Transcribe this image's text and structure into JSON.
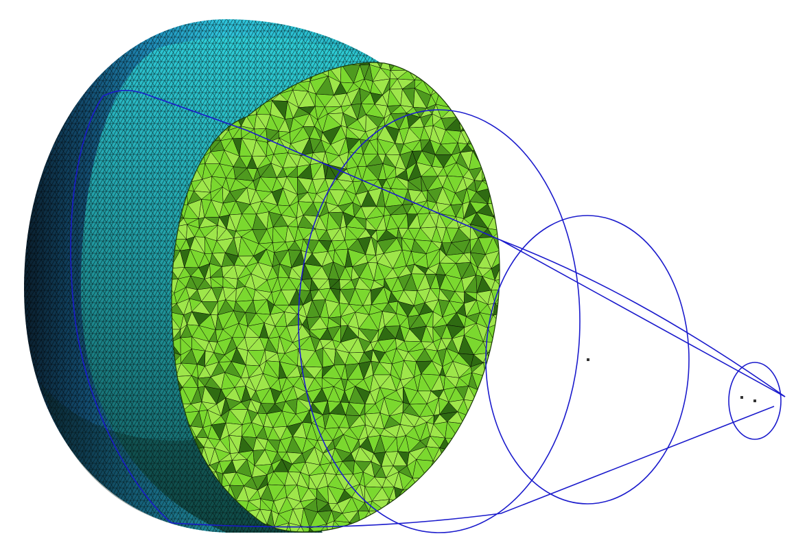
{
  "scene": {
    "background": "#ffffff",
    "objects": [
      {
        "name": "outer-shell-surface-mesh",
        "kind": "triangulated surface mesh",
        "colors": [
          "#0d2a3a",
          "#1c6fa0",
          "#2cc6e0",
          "#1d8f86"
        ]
      },
      {
        "name": "cut-face-volume-mesh",
        "kind": "tetrahedral volume mesh cross-section",
        "colors": [
          "#7bd82f",
          "#9ee64a",
          "#4f9a1f",
          "#2f6b12"
        ]
      },
      {
        "name": "geometry-wireframe",
        "kind": "blue curve outlines",
        "colors": [
          "#1a1acc"
        ]
      }
    ],
    "mesh_edge_color": "#000000"
  }
}
